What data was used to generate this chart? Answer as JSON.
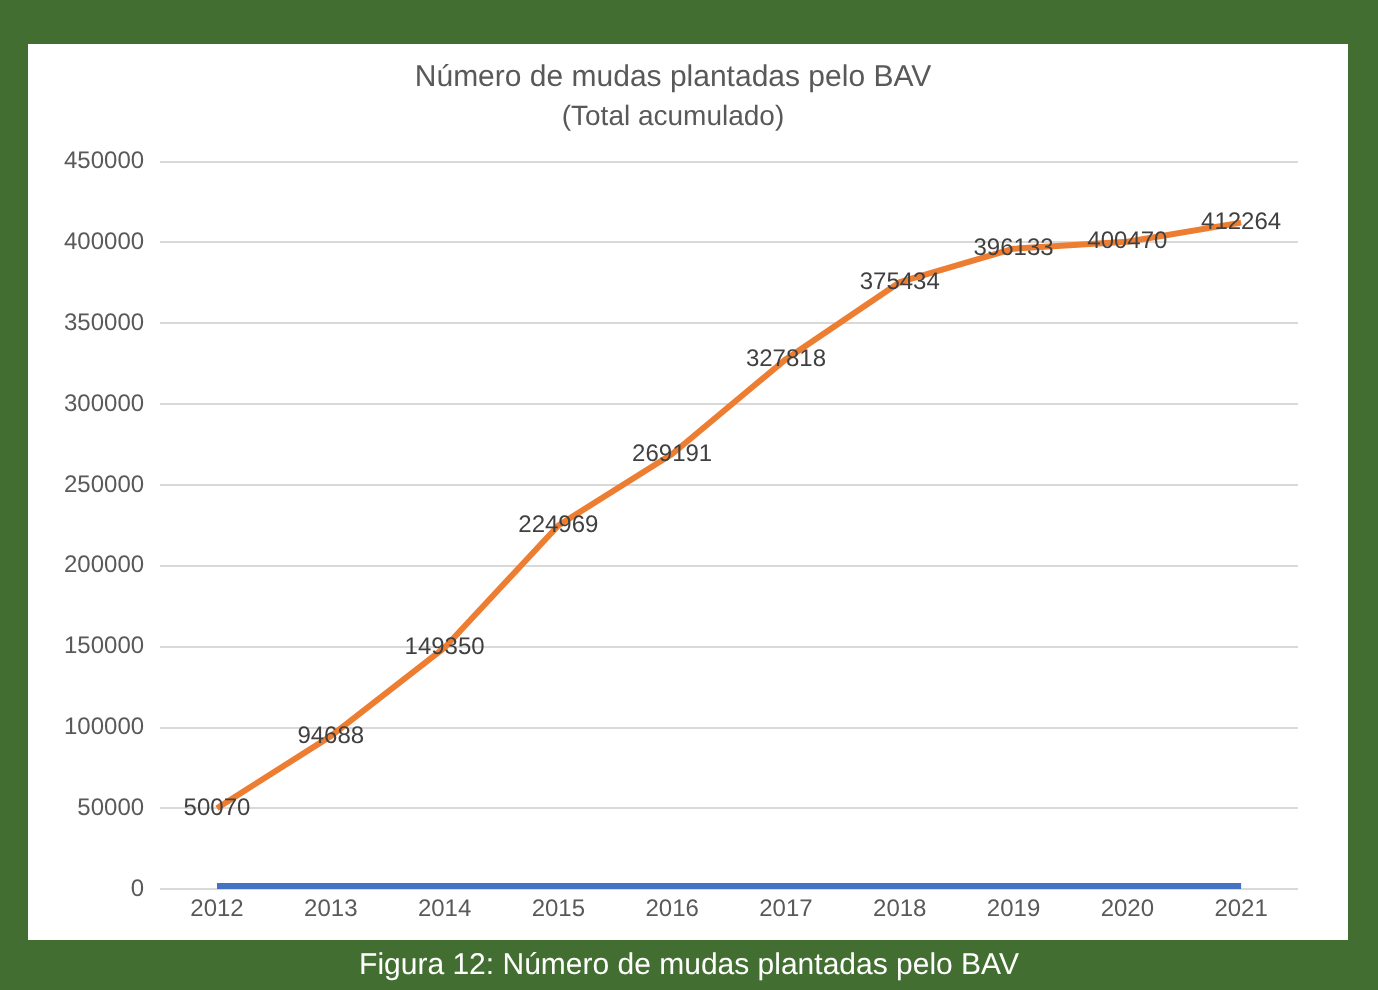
{
  "chart_data": {
    "type": "line",
    "title": "Número de mudas plantadas pelo BAV",
    "subtitle": "(Total acumulado)",
    "annotations": [
      "Figura 12: Número de mudas plantadas pelo BAV"
    ],
    "categories": [
      "2012",
      "2013",
      "2014",
      "2015",
      "2016",
      "2017",
      "2018",
      "2019",
      "2020",
      "2021"
    ],
    "series": [
      {
        "color": "#4472c4",
        "values": [
          2012,
          2013,
          2014,
          2015,
          2016,
          2017,
          2018,
          2019,
          2020,
          2021
        ]
      },
      {
        "color": "#ed7d31",
        "values": [
          50070,
          94688,
          149350,
          224969,
          269191,
          327818,
          375434,
          396133,
          400470,
          412264
        ],
        "value_labels": [
          "50070",
          "94688",
          "149350",
          "224969",
          "269191",
          "327818",
          "375434",
          "396133",
          "400470",
          "412264"
        ]
      }
    ],
    "ylim": [
      0,
      450000
    ],
    "yticks": [
      0,
      50000,
      100000,
      150000,
      200000,
      250000,
      300000,
      350000,
      400000,
      450000
    ],
    "grid": "y",
    "legend": false,
    "marker": "none",
    "line_style": "solid"
  }
}
